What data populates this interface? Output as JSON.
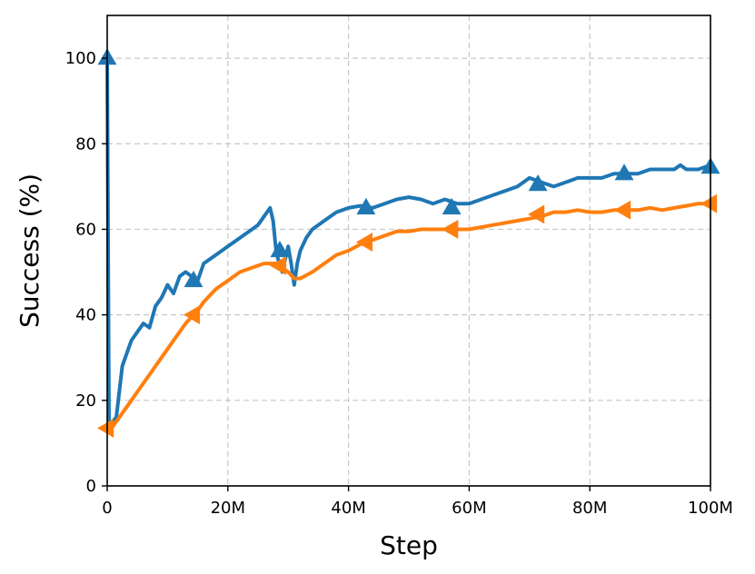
{
  "chart_data": {
    "type": "line",
    "xlabel": "Step",
    "ylabel": "Success (%)",
    "xlim": [
      0,
      100
    ],
    "ylim": [
      0,
      110
    ],
    "x_unit": "M",
    "x_ticks": [
      0,
      20,
      40,
      60,
      80,
      100
    ],
    "x_tick_labels": [
      "0",
      "20M",
      "40M",
      "60M",
      "80M",
      "100M"
    ],
    "y_ticks": [
      0,
      20,
      40,
      60,
      80,
      100
    ],
    "y_tick_labels": [
      "0",
      "20",
      "40",
      "60",
      "80",
      "100"
    ],
    "grid": true,
    "legend": "none",
    "series": [
      {
        "color": "#1f77b4",
        "marker": "triangle-up",
        "x": [
          0,
          0.3,
          0.8,
          1.5,
          2,
          2.5,
          3,
          4,
          5,
          6,
          7,
          8,
          9,
          10,
          11,
          12,
          13,
          14,
          15,
          16,
          17,
          18,
          19,
          20,
          21,
          22,
          23,
          24,
          25,
          26,
          27,
          27.5,
          28,
          28.5,
          29,
          29.5,
          30,
          30.5,
          31,
          31.5,
          32,
          33,
          34,
          35,
          36,
          37,
          38,
          40,
          42,
          44,
          46,
          48,
          50,
          52,
          54,
          56,
          58,
          60,
          62,
          64,
          66,
          68,
          70,
          72,
          74,
          76,
          78,
          80,
          82,
          84,
          86,
          88,
          90,
          92,
          94,
          95,
          96,
          98,
          100
        ],
        "y": [
          100,
          14,
          15,
          16,
          22,
          28,
          30,
          34,
          36,
          38,
          37,
          42,
          44,
          47,
          45,
          49,
          50,
          49,
          48,
          52,
          53,
          54,
          55,
          56,
          57,
          58,
          59,
          60,
          61,
          63,
          65,
          62,
          55,
          52,
          50,
          53,
          56,
          52,
          47,
          52,
          55,
          58,
          60,
          61,
          62,
          63,
          64,
          65,
          65.5,
          65,
          66,
          67,
          67.5,
          67,
          66,
          67,
          66,
          66,
          67,
          68,
          69,
          70,
          72,
          71,
          70,
          71,
          72,
          72,
          72,
          73,
          73,
          73,
          74,
          74,
          74,
          75,
          74,
          74,
          75
        ],
        "markers": [
          [
            0,
            100
          ],
          [
            14.3,
            48
          ],
          [
            28.6,
            55
          ],
          [
            42.9,
            65
          ],
          [
            57.1,
            65
          ],
          [
            71.4,
            70.5
          ],
          [
            85.7,
            73
          ],
          [
            100,
            74.5
          ]
        ]
      },
      {
        "color": "#ff7f0e",
        "marker": "triangle-left",
        "x": [
          0,
          1,
          2,
          3,
          4,
          5,
          6,
          7,
          8,
          9,
          10,
          11,
          12,
          13,
          14,
          15,
          16,
          17,
          18,
          20,
          22,
          24,
          26,
          28,
          30,
          31,
          32,
          34,
          36,
          38,
          40,
          42,
          44,
          46,
          48,
          50,
          52,
          54,
          56,
          58,
          60,
          62,
          64,
          66,
          68,
          70,
          72,
          74,
          76,
          78,
          80,
          82,
          84,
          86,
          88,
          90,
          92,
          94,
          96,
          98,
          100
        ],
        "y": [
          13,
          14,
          16,
          18,
          20,
          22,
          24,
          26,
          28,
          30,
          32,
          34,
          36,
          38,
          39.5,
          41,
          43,
          44.5,
          46,
          48,
          50,
          51,
          52,
          52,
          50,
          48.5,
          48.5,
          50,
          52,
          54,
          55,
          56.5,
          57.5,
          58.5,
          59.5,
          59.5,
          60,
          60,
          60,
          60,
          60,
          60.5,
          61,
          61.5,
          62,
          62.5,
          63,
          64,
          64,
          64.5,
          64,
          64,
          64.5,
          64.5,
          64.5,
          65,
          64.5,
          65,
          65.5,
          66,
          66
        ],
        "markers": [
          [
            0,
            13.5
          ],
          [
            14.3,
            40
          ],
          [
            28.6,
            51.5
          ],
          [
            42.9,
            57
          ],
          [
            57.1,
            60
          ],
          [
            71.4,
            63.5
          ],
          [
            85.7,
            64.5
          ],
          [
            100,
            66
          ]
        ]
      }
    ]
  }
}
